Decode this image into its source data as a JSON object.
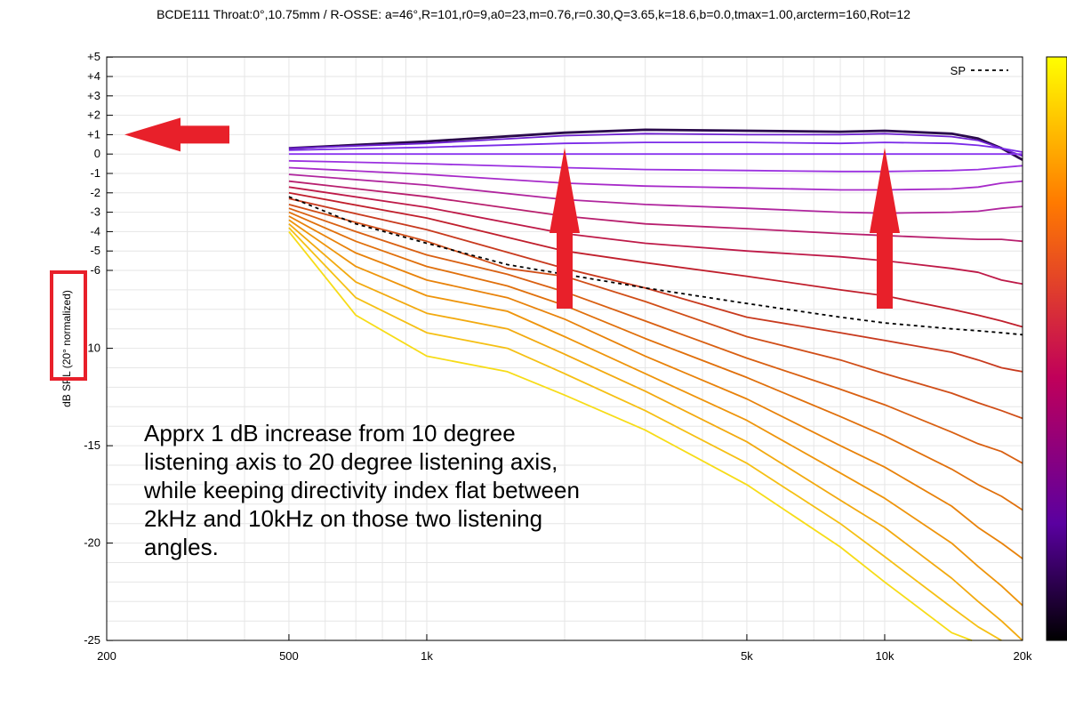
{
  "chart_data": {
    "type": "line",
    "title": "BCDE111 Throat:0°,10.75mm / R-OSSE: a=46°,R=101,r0=9,a0=23,m=0.76,r=0.30,Q=3.65,k=18.6,b=0.0,tmax=1.00,arcterm=160,Rot=12",
    "ylabel_prefix": "dB SPL",
    "ylabel_highlight": "(20° normalized)",
    "xscale": "log",
    "xlim": [
      200,
      20000
    ],
    "ylim": [
      -25,
      5
    ],
    "y_scale_note": "piecewise: -25..-6 at 1 dB per 10 units, -6..+5 expanded",
    "x_ticks": [
      {
        "value": 200,
        "label": "200"
      },
      {
        "value": 500,
        "label": "500"
      },
      {
        "value": 1000,
        "label": "1k"
      },
      {
        "value": 5000,
        "label": "5k"
      },
      {
        "value": 10000,
        "label": "10k"
      },
      {
        "value": 20000,
        "label": "20k"
      }
    ],
    "y_ticks": [
      {
        "value": 5,
        "label": "+5"
      },
      {
        "value": 4,
        "label": "+4"
      },
      {
        "value": 3,
        "label": "+3"
      },
      {
        "value": 2,
        "label": "+2"
      },
      {
        "value": 1,
        "label": "+1"
      },
      {
        "value": 0,
        "label": "0"
      },
      {
        "value": -1,
        "label": "-1"
      },
      {
        "value": -2,
        "label": "-2"
      },
      {
        "value": -3,
        "label": "-3"
      },
      {
        "value": -4,
        "label": "-4"
      },
      {
        "value": -5,
        "label": "-5"
      },
      {
        "value": -6,
        "label": "-6"
      },
      {
        "value": -10,
        "label": "-10"
      },
      {
        "value": -15,
        "label": "-15"
      },
      {
        "value": -20,
        "label": "-20"
      },
      {
        "value": -25,
        "label": "-25"
      }
    ],
    "grid": true,
    "legend": {
      "position": "top-right",
      "entries": [
        {
          "label": "SP",
          "style": "dashed",
          "color": "#000000"
        }
      ]
    },
    "colorbar": {
      "position": "right",
      "from": "#000000",
      "via": [
        "#7b00d0",
        "#d4004a",
        "#ff7a00"
      ],
      "to": "#ffff00"
    },
    "series": [
      {
        "color": "#2a0a4a",
        "width": 2.8,
        "points": [
          [
            500,
            0.3
          ],
          [
            1000,
            0.65
          ],
          [
            2000,
            1.1
          ],
          [
            3000,
            1.25
          ],
          [
            5000,
            1.2
          ],
          [
            8000,
            1.15
          ],
          [
            10000,
            1.2
          ],
          [
            14000,
            1.05
          ],
          [
            16000,
            0.8
          ],
          [
            18000,
            0.3
          ],
          [
            20000,
            -0.3
          ]
        ]
      },
      {
        "color": "#6d1fd0",
        "width": 1.8,
        "points": [
          [
            500,
            0.3
          ],
          [
            1000,
            0.55
          ],
          [
            2000,
            0.95
          ],
          [
            3000,
            1.05
          ],
          [
            5000,
            1.0
          ],
          [
            8000,
            1.0
          ],
          [
            10000,
            1.05
          ],
          [
            14000,
            0.9
          ],
          [
            16000,
            0.7
          ],
          [
            18000,
            0.3
          ],
          [
            20000,
            -0.1
          ]
        ]
      },
      {
        "color": "#7a2ae8",
        "width": 1.8,
        "points": [
          [
            500,
            0.2
          ],
          [
            1000,
            0.35
          ],
          [
            2000,
            0.55
          ],
          [
            3000,
            0.6
          ],
          [
            5000,
            0.6
          ],
          [
            8000,
            0.55
          ],
          [
            10000,
            0.6
          ],
          [
            14000,
            0.55
          ],
          [
            16000,
            0.45
          ],
          [
            18000,
            0.3
          ],
          [
            20000,
            0.1
          ]
        ]
      },
      {
        "color": "#8a35f0",
        "width": 1.8,
        "points": [
          [
            500,
            0
          ],
          [
            1000,
            0
          ],
          [
            2000,
            0
          ],
          [
            5000,
            0
          ],
          [
            10000,
            0
          ],
          [
            15000,
            0
          ],
          [
            20000,
            0
          ]
        ]
      },
      {
        "color": "#9a30e0",
        "width": 1.8,
        "points": [
          [
            500,
            -0.35
          ],
          [
            1000,
            -0.5
          ],
          [
            2000,
            -0.7
          ],
          [
            3000,
            -0.8
          ],
          [
            5000,
            -0.85
          ],
          [
            8000,
            -0.9
          ],
          [
            10000,
            -0.9
          ],
          [
            14000,
            -0.85
          ],
          [
            16000,
            -0.8
          ],
          [
            20000,
            -0.6
          ]
        ]
      },
      {
        "color": "#a72ac9",
        "width": 1.8,
        "points": [
          [
            500,
            -0.7
          ],
          [
            1000,
            -1.05
          ],
          [
            2000,
            -1.5
          ],
          [
            3000,
            -1.65
          ],
          [
            5000,
            -1.75
          ],
          [
            8000,
            -1.85
          ],
          [
            10000,
            -1.85
          ],
          [
            14000,
            -1.8
          ],
          [
            16000,
            -1.7
          ],
          [
            18000,
            -1.5
          ],
          [
            20000,
            -1.4
          ]
        ]
      },
      {
        "color": "#b0259e",
        "width": 1.8,
        "points": [
          [
            500,
            -1.05
          ],
          [
            1000,
            -1.6
          ],
          [
            2000,
            -2.35
          ],
          [
            3000,
            -2.6
          ],
          [
            5000,
            -2.8
          ],
          [
            8000,
            -3.0
          ],
          [
            10000,
            -3.05
          ],
          [
            14000,
            -3.0
          ],
          [
            16000,
            -2.95
          ],
          [
            18000,
            -2.8
          ],
          [
            20000,
            -2.7
          ]
        ]
      },
      {
        "color": "#b81f6e",
        "width": 1.8,
        "points": [
          [
            500,
            -1.4
          ],
          [
            1000,
            -2.2
          ],
          [
            2000,
            -3.2
          ],
          [
            3000,
            -3.6
          ],
          [
            5000,
            -3.85
          ],
          [
            8000,
            -4.1
          ],
          [
            10000,
            -4.2
          ],
          [
            14000,
            -4.35
          ],
          [
            16000,
            -4.4
          ],
          [
            18000,
            -4.4
          ],
          [
            20000,
            -4.5
          ]
        ]
      },
      {
        "color": "#be1a48",
        "width": 1.8,
        "points": [
          [
            500,
            -1.7
          ],
          [
            1000,
            -2.75
          ],
          [
            2000,
            -4.1
          ],
          [
            3000,
            -4.6
          ],
          [
            5000,
            -5.0
          ],
          [
            8000,
            -5.3
          ],
          [
            10000,
            -5.5
          ],
          [
            14000,
            -5.9
          ],
          [
            16000,
            -6.1
          ],
          [
            18000,
            -6.5
          ],
          [
            20000,
            -6.7
          ]
        ]
      },
      {
        "color": "#c01f2c",
        "width": 1.8,
        "points": [
          [
            500,
            -2.0
          ],
          [
            1000,
            -3.3
          ],
          [
            2000,
            -5.0
          ],
          [
            3000,
            -5.6
          ],
          [
            5000,
            -6.3
          ],
          [
            8000,
            -7.0
          ],
          [
            10000,
            -7.3
          ],
          [
            14000,
            -8.0
          ],
          [
            16000,
            -8.3
          ],
          [
            18000,
            -8.6
          ],
          [
            20000,
            -8.9
          ]
        ]
      },
      {
        "color": "#c83a1e",
        "width": 1.8,
        "points": [
          [
            500,
            -2.3
          ],
          [
            1000,
            -3.9
          ],
          [
            2000,
            -5.9
          ],
          [
            3000,
            -6.9
          ],
          [
            5000,
            -8.4
          ],
          [
            8000,
            -9.2
          ],
          [
            10000,
            -9.6
          ],
          [
            14000,
            -10.2
          ],
          [
            16000,
            -10.6
          ],
          [
            18000,
            -11.0
          ],
          [
            20000,
            -11.2
          ]
        ]
      },
      {
        "color": "#d04e18",
        "width": 1.8,
        "points": [
          [
            500,
            -2.6
          ],
          [
            1000,
            -4.5
          ],
          [
            1500,
            -5.9
          ],
          [
            2000,
            -6.3
          ],
          [
            3000,
            -7.6
          ],
          [
            5000,
            -9.4
          ],
          [
            8000,
            -10.6
          ],
          [
            10000,
            -11.3
          ],
          [
            14000,
            -12.3
          ],
          [
            16000,
            -12.8
          ],
          [
            18000,
            -13.2
          ],
          [
            20000,
            -13.6
          ]
        ]
      },
      {
        "color": "#d96012",
        "width": 1.8,
        "points": [
          [
            500,
            -2.8
          ],
          [
            700,
            -4.0
          ],
          [
            1000,
            -5.2
          ],
          [
            1500,
            -6.2
          ],
          [
            2000,
            -7.1
          ],
          [
            3000,
            -8.6
          ],
          [
            5000,
            -10.5
          ],
          [
            8000,
            -12.1
          ],
          [
            10000,
            -12.9
          ],
          [
            14000,
            -14.3
          ],
          [
            16000,
            -14.9
          ],
          [
            18000,
            -15.3
          ],
          [
            20000,
            -15.9
          ]
        ]
      },
      {
        "color": "#e0700c",
        "width": 1.8,
        "points": [
          [
            500,
            -3.0
          ],
          [
            700,
            -4.5
          ],
          [
            1000,
            -5.8
          ],
          [
            1500,
            -6.8
          ],
          [
            2000,
            -7.8
          ],
          [
            3000,
            -9.5
          ],
          [
            5000,
            -11.5
          ],
          [
            8000,
            -13.5
          ],
          [
            10000,
            -14.5
          ],
          [
            14000,
            -16.2
          ],
          [
            16000,
            -17.0
          ],
          [
            18000,
            -17.6
          ],
          [
            20000,
            -18.3
          ]
        ]
      },
      {
        "color": "#e8820a",
        "width": 1.8,
        "points": [
          [
            500,
            -3.2
          ],
          [
            700,
            -5.1
          ],
          [
            1000,
            -6.5
          ],
          [
            1500,
            -7.4
          ],
          [
            2000,
            -8.5
          ],
          [
            3000,
            -10.4
          ],
          [
            5000,
            -12.6
          ],
          [
            8000,
            -15.0
          ],
          [
            10000,
            -16.1
          ],
          [
            14000,
            -18.1
          ],
          [
            16000,
            -19.2
          ],
          [
            18000,
            -20.0
          ],
          [
            20000,
            -20.8
          ]
        ]
      },
      {
        "color": "#ee950c",
        "width": 1.8,
        "points": [
          [
            500,
            -3.4
          ],
          [
            700,
            -5.8
          ],
          [
            1000,
            -7.3
          ],
          [
            1500,
            -8.1
          ],
          [
            2000,
            -9.4
          ],
          [
            3000,
            -11.3
          ],
          [
            5000,
            -13.7
          ],
          [
            8000,
            -16.4
          ],
          [
            10000,
            -17.7
          ],
          [
            14000,
            -20.0
          ],
          [
            16000,
            -21.2
          ],
          [
            18000,
            -22.2
          ],
          [
            20000,
            -23.2
          ]
        ]
      },
      {
        "color": "#f2aa10",
        "width": 1.8,
        "points": [
          [
            500,
            -3.6
          ],
          [
            700,
            -6.6
          ],
          [
            1000,
            -8.2
          ],
          [
            1500,
            -9.0
          ],
          [
            2000,
            -10.3
          ],
          [
            3000,
            -12.2
          ],
          [
            5000,
            -14.8
          ],
          [
            8000,
            -17.8
          ],
          [
            10000,
            -19.2
          ],
          [
            14000,
            -21.8
          ],
          [
            16000,
            -23.0
          ],
          [
            18000,
            -24.0
          ],
          [
            20000,
            -25.0
          ]
        ]
      },
      {
        "color": "#f5c015",
        "width": 1.8,
        "points": [
          [
            500,
            -3.8
          ],
          [
            700,
            -7.4
          ],
          [
            1000,
            -9.2
          ],
          [
            1500,
            -10.0
          ],
          [
            2000,
            -11.3
          ],
          [
            3000,
            -13.2
          ],
          [
            5000,
            -15.9
          ],
          [
            8000,
            -19.0
          ],
          [
            10000,
            -20.7
          ],
          [
            14000,
            -23.3
          ],
          [
            16000,
            -24.3
          ],
          [
            18000,
            -25.0
          ]
        ]
      },
      {
        "color": "#f7dc18",
        "width": 1.8,
        "points": [
          [
            500,
            -4.0
          ],
          [
            700,
            -8.3
          ],
          [
            1000,
            -10.4
          ],
          [
            1500,
            -11.2
          ],
          [
            2000,
            -12.4
          ],
          [
            3000,
            -14.2
          ],
          [
            5000,
            -17.0
          ],
          [
            8000,
            -20.2
          ],
          [
            10000,
            -22.0
          ],
          [
            14000,
            -24.6
          ],
          [
            15500,
            -25.0
          ]
        ]
      }
    ],
    "sp_series": {
      "name": "SP",
      "points": [
        [
          500,
          -2.2
        ],
        [
          700,
          -3.6
        ],
        [
          1000,
          -4.6
        ],
        [
          1500,
          -5.7
        ],
        [
          2000,
          -6.2
        ],
        [
          3000,
          -6.9
        ],
        [
          5000,
          -7.7
        ],
        [
          8000,
          -8.4
        ],
        [
          10000,
          -8.7
        ],
        [
          14000,
          -9.0
        ],
        [
          16000,
          -9.1
        ],
        [
          18000,
          -9.2
        ],
        [
          20000,
          -9.3
        ]
      ]
    },
    "annotation_lines": [
      "Apprx 1 dB increase from 10 degree",
      "listening axis to 20 degree listening axis,",
      "while keeping directivity index flat between",
      "2kHz and 10kHz on those two listening",
      "angles."
    ],
    "arrows": [
      {
        "direction": "left",
        "color": "#e8202a",
        "at_y": 1
      },
      {
        "direction": "up",
        "color": "#e8202a",
        "at_x": 2000
      },
      {
        "direction": "up",
        "color": "#e8202a",
        "at_x": 10000
      }
    ]
  }
}
